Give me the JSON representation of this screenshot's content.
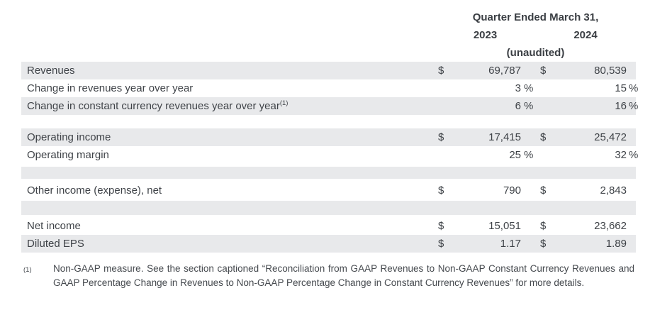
{
  "header": {
    "title": "Quarter Ended March 31,",
    "year_1": "2023",
    "year_2": "2024",
    "note": "(unaudited)"
  },
  "table": {
    "rows": [
      {
        "label": "Revenues",
        "d1": "$",
        "v1": "69,787",
        "p1": "",
        "d2": "$",
        "v2": "80,539",
        "p2": ""
      },
      {
        "label": "Change in revenues year over year",
        "d1": "",
        "v1": "3",
        "p1": "%",
        "d2": "",
        "v2": "15",
        "p2": "%"
      },
      {
        "label": "Change in constant currency revenues year over year",
        "sup": "(1)",
        "d1": "",
        "v1": "6",
        "p1": "%",
        "d2": "",
        "v2": "16",
        "p2": "%"
      },
      {
        "label": "Operating income",
        "d1": "$",
        "v1": "17,415",
        "p1": "",
        "d2": "$",
        "v2": "25,472",
        "p2": ""
      },
      {
        "label": "Operating margin",
        "d1": "",
        "v1": "25",
        "p1": "%",
        "d2": "",
        "v2": "32",
        "p2": "%"
      },
      {
        "label": "Other income (expense), net",
        "d1": "$",
        "v1": "790",
        "p1": "",
        "d2": "$",
        "v2": "2,843",
        "p2": ""
      },
      {
        "label": "Net income",
        "d1": "$",
        "v1": "15,051",
        "p1": "",
        "d2": "$",
        "v2": "23,662",
        "p2": ""
      },
      {
        "label": "Diluted EPS",
        "d1": "$",
        "v1": "1.17",
        "p1": "",
        "d2": "$",
        "v2": "1.89",
        "p2": ""
      }
    ]
  },
  "footnote": {
    "marker": "(1)",
    "text": "Non-GAAP measure. See the section captioned “Reconciliation from GAAP Revenues to Non-GAAP Constant Currency Revenues and GAAP Percentage Change in Revenues to Non-GAAP Percentage Change in Constant Currency Revenues” for more details."
  },
  "colors": {
    "row_shade": "#e8e9eb",
    "text": "#3f4348"
  }
}
